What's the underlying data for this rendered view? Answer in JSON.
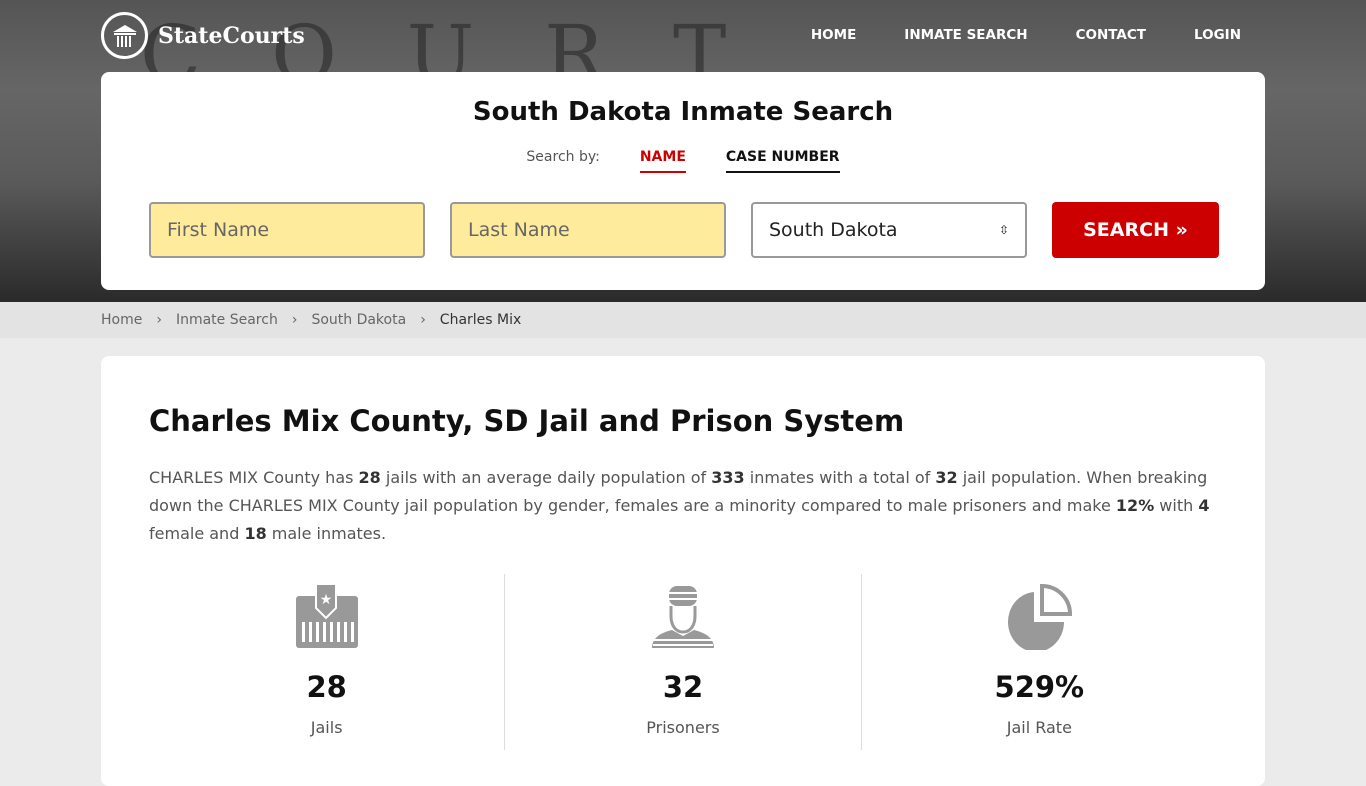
{
  "brand": "StateCourts",
  "nav": [
    "HOME",
    "INMATE SEARCH",
    "CONTACT",
    "LOGIN"
  ],
  "hero_bg_text": "COURT HOUSE",
  "search": {
    "title": "South Dakota Inmate Search",
    "search_by": "Search by:",
    "tabs": [
      "NAME",
      "CASE NUMBER"
    ],
    "first_placeholder": "First Name",
    "last_placeholder": "Last Name",
    "state": "South Dakota",
    "button": "SEARCH"
  },
  "breadcrumb": [
    "Home",
    "Inmate Search",
    "South Dakota",
    "Charles Mix"
  ],
  "main": {
    "title": "Charles Mix County, SD Jail and Prison System",
    "p": [
      "CHARLES MIX County has ",
      "28",
      " jails with an average daily population of ",
      "333",
      " inmates with a total of ",
      "32",
      " jail population. When breaking down the CHARLES MIX County jail population by gender, females are a minority compared to male prisoners and make ",
      "12%",
      " with ",
      "4",
      " female and ",
      "18",
      " male inmates."
    ],
    "stats": [
      {
        "value": "28",
        "label": "Jails",
        "icon": "jail-icon"
      },
      {
        "value": "32",
        "label": "Prisoners",
        "icon": "prisoner-icon"
      },
      {
        "value": "529%",
        "label": "Jail Rate",
        "icon": "pie-chart-icon"
      }
    ]
  }
}
